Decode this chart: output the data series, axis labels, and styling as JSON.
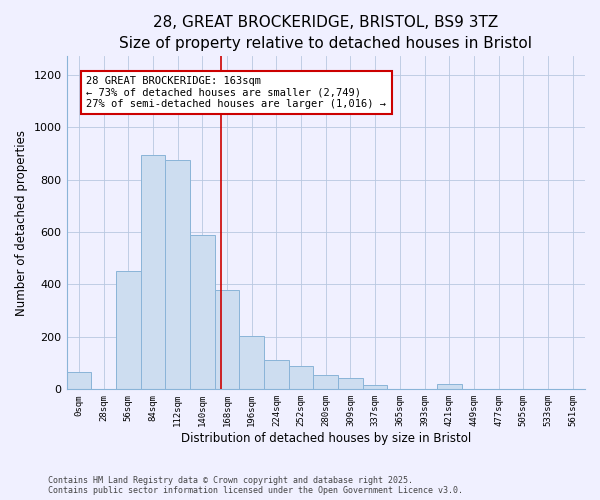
{
  "title": "28, GREAT BROCKERIDGE, BRISTOL, BS9 3TZ",
  "subtitle": "Size of property relative to detached houses in Bristol",
  "xlabel": "Distribution of detached houses by size in Bristol",
  "ylabel": "Number of detached properties",
  "bar_labels": [
    "0sqm",
    "28sqm",
    "56sqm",
    "84sqm",
    "112sqm",
    "140sqm",
    "168sqm",
    "196sqm",
    "224sqm",
    "252sqm",
    "280sqm",
    "309sqm",
    "337sqm",
    "365sqm",
    "393sqm",
    "421sqm",
    "449sqm",
    "477sqm",
    "505sqm",
    "533sqm",
    "561sqm"
  ],
  "bar_heights": [
    65,
    0,
    450,
    895,
    875,
    590,
    380,
    205,
    112,
    88,
    55,
    45,
    18,
    0,
    0,
    22,
    0,
    0,
    0,
    0,
    0
  ],
  "bar_color": "#cdddf0",
  "bar_edge_color": "#8ab4d8",
  "vline_x": 5.75,
  "vline_color": "#cc0000",
  "annotation_text": "28 GREAT BROCKERIDGE: 163sqm\n← 73% of detached houses are smaller (2,749)\n27% of semi-detached houses are larger (1,016) →",
  "annotation_box_color": "#ffffff",
  "annotation_box_edge": "#cc0000",
  "ylim": [
    0,
    1270
  ],
  "yticks": [
    0,
    200,
    400,
    600,
    800,
    1000,
    1200
  ],
  "bg_color": "#f0f0ff",
  "footer_line1": "Contains HM Land Registry data © Crown copyright and database right 2025.",
  "footer_line2": "Contains public sector information licensed under the Open Government Licence v3.0.",
  "title_fontsize": 11,
  "subtitle_fontsize": 9.5
}
